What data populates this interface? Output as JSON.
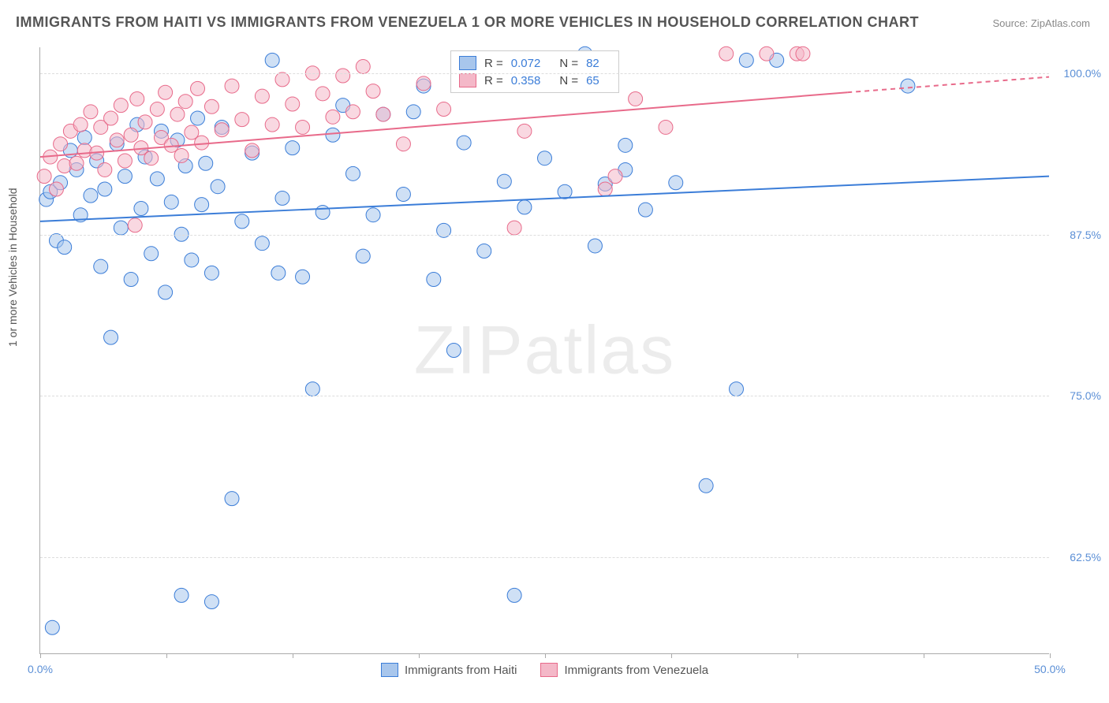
{
  "title": "IMMIGRANTS FROM HAITI VS IMMIGRANTS FROM VENEZUELA 1 OR MORE VEHICLES IN HOUSEHOLD CORRELATION CHART",
  "source_label": "Source: ZipAtlas.com",
  "y_axis_label": "1 or more Vehicles in Household",
  "watermark": "ZIPatlas",
  "chart": {
    "type": "scatter",
    "xlim": [
      0,
      50
    ],
    "ylim": [
      55,
      102
    ],
    "x_ticks": [
      0,
      6.25,
      12.5,
      18.75,
      25,
      31.25,
      37.5,
      43.75,
      50
    ],
    "x_tick_labels": {
      "0": "0.0%",
      "50": "50.0%"
    },
    "y_ticks": [
      62.5,
      75.0,
      87.5,
      100.0
    ],
    "y_tick_labels": [
      "62.5%",
      "75.0%",
      "87.5%",
      "100.0%"
    ],
    "background_color": "#ffffff",
    "grid_color": "#dddddd",
    "marker_radius": 9,
    "marker_opacity": 0.55,
    "series": [
      {
        "name": "Immigrants from Haiti",
        "color_fill": "#a8c6ec",
        "color_stroke": "#3b7dd8",
        "R": "0.072",
        "N": "82",
        "trend": {
          "x1": 0,
          "y1": 88.5,
          "x2": 50,
          "y2": 92.0,
          "dash_from_x": 50
        },
        "points": [
          [
            0.3,
            90.2
          ],
          [
            0.5,
            90.8
          ],
          [
            0.8,
            87.0
          ],
          [
            1.0,
            91.5
          ],
          [
            1.2,
            86.5
          ],
          [
            1.5,
            94.0
          ],
          [
            0.6,
            57.0
          ],
          [
            1.8,
            92.5
          ],
          [
            2.0,
            89.0
          ],
          [
            2.2,
            95.0
          ],
          [
            2.5,
            90.5
          ],
          [
            2.8,
            93.2
          ],
          [
            3.0,
            85.0
          ],
          [
            3.2,
            91.0
          ],
          [
            3.5,
            79.5
          ],
          [
            3.8,
            94.5
          ],
          [
            4.0,
            88.0
          ],
          [
            4.2,
            92.0
          ],
          [
            4.5,
            84.0
          ],
          [
            4.8,
            96.0
          ],
          [
            5.0,
            89.5
          ],
          [
            5.2,
            93.5
          ],
          [
            5.5,
            86.0
          ],
          [
            5.8,
            91.8
          ],
          [
            6.0,
            95.5
          ],
          [
            6.2,
            83.0
          ],
          [
            6.5,
            90.0
          ],
          [
            6.8,
            94.8
          ],
          [
            7.0,
            87.5
          ],
          [
            7.2,
            92.8
          ],
          [
            7.5,
            85.5
          ],
          [
            7.8,
            96.5
          ],
          [
            8.0,
            89.8
          ],
          [
            8.2,
            93.0
          ],
          [
            8.5,
            84.5
          ],
          [
            8.8,
            91.2
          ],
          [
            9.0,
            95.8
          ],
          [
            9.5,
            67.0
          ],
          [
            10.0,
            88.5
          ],
          [
            10.5,
            93.8
          ],
          [
            11.0,
            86.8
          ],
          [
            11.5,
            101.0
          ],
          [
            12.0,
            90.3
          ],
          [
            12.5,
            94.2
          ],
          [
            13.0,
            84.2
          ],
          [
            13.5,
            75.5
          ],
          [
            14.0,
            89.2
          ],
          [
            14.5,
            95.2
          ],
          [
            15.0,
            97.5
          ],
          [
            15.5,
            92.2
          ],
          [
            16.0,
            85.8
          ],
          [
            17.0,
            96.8
          ],
          [
            18.0,
            90.6
          ],
          [
            19.0,
            99.0
          ],
          [
            7.0,
            59.5
          ],
          [
            8.5,
            59.0
          ],
          [
            20.0,
            87.8
          ],
          [
            20.5,
            78.5
          ],
          [
            21.0,
            94.6
          ],
          [
            22.0,
            86.2
          ],
          [
            23.0,
            91.6
          ],
          [
            24.0,
            89.6
          ],
          [
            25.0,
            93.4
          ],
          [
            26.0,
            90.8
          ],
          [
            27.0,
            101.5
          ],
          [
            27.5,
            86.6
          ],
          [
            28.0,
            91.4
          ],
          [
            29.0,
            94.4
          ],
          [
            30.0,
            89.4
          ],
          [
            33.0,
            68.0
          ],
          [
            35.0,
            101.0
          ],
          [
            36.5,
            101.0
          ],
          [
            23.5,
            59.5
          ],
          [
            34.5,
            75.5
          ],
          [
            31.5,
            91.5
          ],
          [
            29.0,
            92.5
          ],
          [
            18.5,
            97.0
          ],
          [
            19.5,
            84.0
          ],
          [
            16.5,
            89.0
          ],
          [
            43.0,
            99.0
          ],
          [
            11.8,
            84.5
          ]
        ]
      },
      {
        "name": "Immigrants from Venezuela",
        "color_fill": "#f4b8c8",
        "color_stroke": "#e86a8a",
        "R": "0.358",
        "N": "65",
        "trend": {
          "x1": 0,
          "y1": 93.5,
          "x2": 40,
          "y2": 98.5,
          "dash_from_x": 40,
          "x2_ext": 50,
          "y2_ext": 99.7
        },
        "points": [
          [
            0.2,
            92.0
          ],
          [
            0.5,
            93.5
          ],
          [
            0.8,
            91.0
          ],
          [
            1.0,
            94.5
          ],
          [
            1.2,
            92.8
          ],
          [
            1.5,
            95.5
          ],
          [
            1.8,
            93.0
          ],
          [
            2.0,
            96.0
          ],
          [
            2.2,
            94.0
          ],
          [
            2.5,
            97.0
          ],
          [
            2.8,
            93.8
          ],
          [
            3.0,
            95.8
          ],
          [
            3.2,
            92.5
          ],
          [
            3.5,
            96.5
          ],
          [
            3.8,
            94.8
          ],
          [
            4.0,
            97.5
          ],
          [
            4.2,
            93.2
          ],
          [
            4.5,
            95.2
          ],
          [
            4.8,
            98.0
          ],
          [
            5.0,
            94.2
          ],
          [
            5.2,
            96.2
          ],
          [
            5.5,
            93.4
          ],
          [
            5.8,
            97.2
          ],
          [
            6.0,
            95.0
          ],
          [
            6.2,
            98.5
          ],
          [
            6.5,
            94.4
          ],
          [
            6.8,
            96.8
          ],
          [
            7.0,
            93.6
          ],
          [
            7.2,
            97.8
          ],
          [
            7.5,
            95.4
          ],
          [
            7.8,
            98.8
          ],
          [
            8.0,
            94.6
          ],
          [
            8.5,
            97.4
          ],
          [
            9.0,
            95.6
          ],
          [
            9.5,
            99.0
          ],
          [
            10.0,
            96.4
          ],
          [
            10.5,
            94.0
          ],
          [
            11.0,
            98.2
          ],
          [
            11.5,
            96.0
          ],
          [
            12.0,
            99.5
          ],
          [
            12.5,
            97.6
          ],
          [
            13.0,
            95.8
          ],
          [
            13.5,
            100.0
          ],
          [
            14.0,
            98.4
          ],
          [
            14.5,
            96.6
          ],
          [
            15.0,
            99.8
          ],
          [
            15.5,
            97.0
          ],
          [
            16.0,
            100.5
          ],
          [
            16.5,
            98.6
          ],
          [
            17.0,
            96.8
          ],
          [
            18.0,
            94.5
          ],
          [
            19.0,
            99.2
          ],
          [
            20.0,
            97.2
          ],
          [
            22.0,
            100.8
          ],
          [
            24.0,
            95.5
          ],
          [
            23.5,
            88.0
          ],
          [
            28.0,
            91.0
          ],
          [
            28.5,
            92.0
          ],
          [
            29.5,
            98.0
          ],
          [
            31.0,
            95.8
          ],
          [
            4.7,
            88.2
          ],
          [
            34.0,
            101.5
          ],
          [
            36.0,
            101.5
          ],
          [
            37.5,
            101.5
          ],
          [
            37.8,
            101.5
          ]
        ]
      }
    ]
  },
  "legend_bottom": [
    {
      "label": "Immigrants from Haiti",
      "fill": "#a8c6ec",
      "stroke": "#3b7dd8"
    },
    {
      "label": "Immigrants from Venezuela",
      "fill": "#f4b8c8",
      "stroke": "#e86a8a"
    }
  ]
}
